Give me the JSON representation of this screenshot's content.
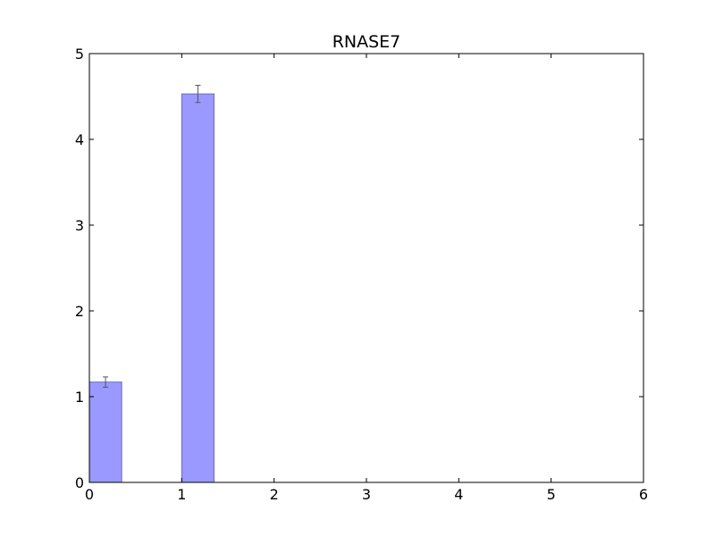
{
  "chart_data": {
    "type": "bar",
    "title": "RNASE7",
    "xlabel": "",
    "ylabel": "",
    "xlim": [
      0,
      6
    ],
    "ylim": [
      0,
      5
    ],
    "xticks": [
      "0",
      "1",
      "2",
      "3",
      "4",
      "5",
      "6"
    ],
    "yticks": [
      "0",
      "1",
      "2",
      "3",
      "4",
      "5"
    ],
    "bar_width": 0.35,
    "series": [
      {
        "bars": [
          {
            "x": 0,
            "value": 1.17,
            "error": 0.06
          },
          {
            "x": 1,
            "value": 4.53,
            "error": 0.1
          }
        ]
      }
    ],
    "grid": false,
    "colors": {
      "bar_fill": "#9999ff",
      "bar_edge": "#6d6db8",
      "error_bar": "#555555",
      "axes": "#000000"
    }
  }
}
